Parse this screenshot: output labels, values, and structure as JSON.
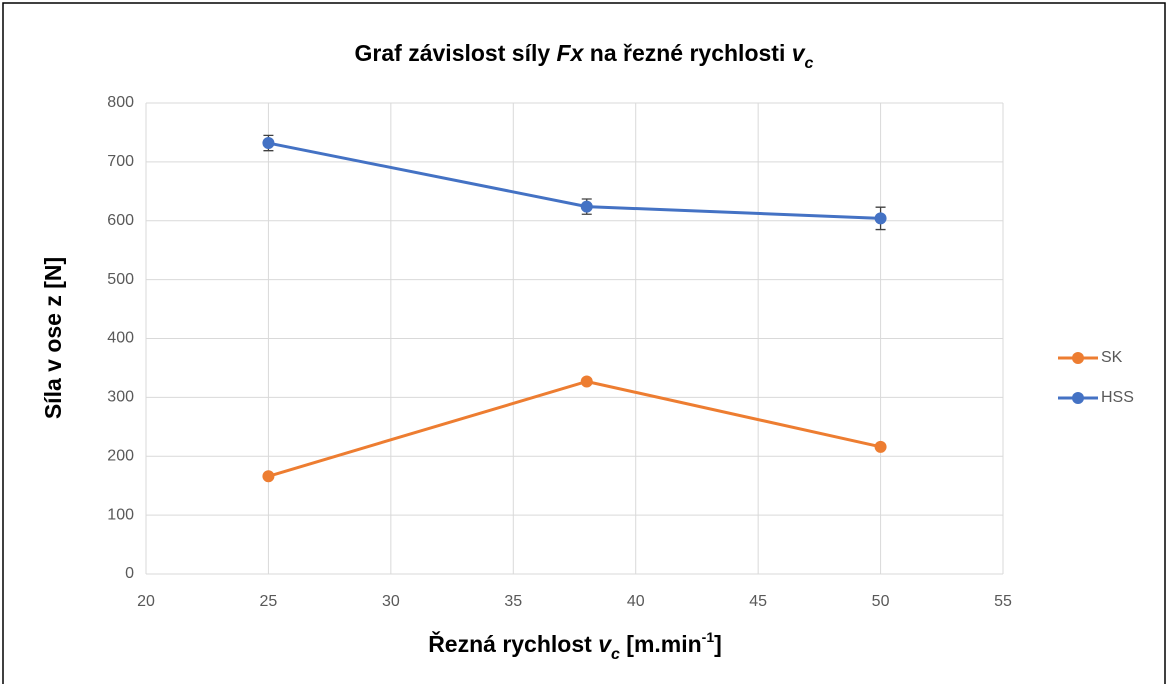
{
  "chart_data": {
    "type": "line",
    "title": [
      "Graf závislost síly ",
      "Fx",
      " na řezné rychlosti ",
      "v",
      "c"
    ],
    "xlabel": [
      "Řezná rychlost ",
      "v",
      "c",
      " [m.min",
      "-1",
      "]"
    ],
    "ylabel": "Síla v ose z [N]",
    "x": [
      25,
      38,
      50
    ],
    "series": [
      {
        "name": "SK",
        "color": "#ed7d31",
        "values": [
          166,
          327,
          216
        ]
      },
      {
        "name": "HSS",
        "color": "#4472c4",
        "values": [
          732,
          624,
          604
        ],
        "errors": [
          13,
          13,
          19
        ]
      }
    ],
    "xlim": [
      20,
      55
    ],
    "xticks": [
      20,
      25,
      30,
      35,
      40,
      45,
      50,
      55
    ],
    "ylim": [
      0,
      800
    ],
    "yticks": [
      0,
      100,
      200,
      300,
      400,
      500,
      600,
      700,
      800
    ],
    "grid": true,
    "legend": "right"
  }
}
